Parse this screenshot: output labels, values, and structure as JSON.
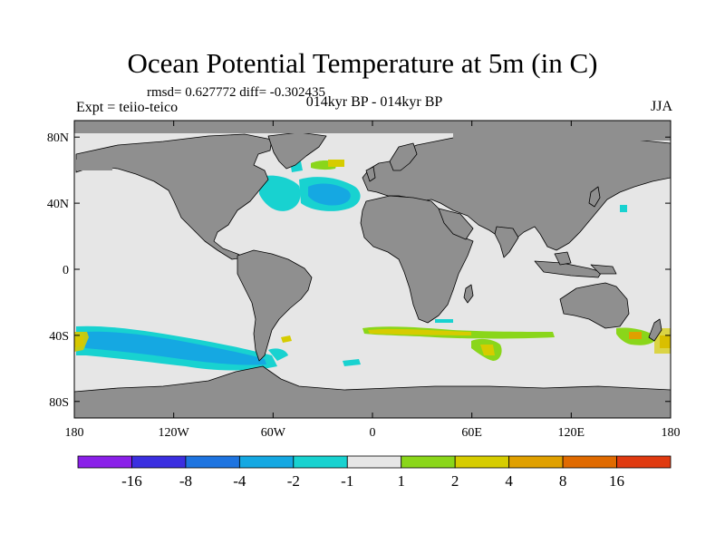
{
  "chart_data": {
    "type": "heatmap",
    "title": "Ocean Potential Temperature at 5m (in C)",
    "stats_text": "rmsd= 0.627772 diff= -0.302435",
    "left_subtitle": "Expt = teiio-teico",
    "center_subtitle": "014kyr BP - 014kyr BP",
    "right_subtitle": "JJA",
    "x_ticks": [
      "180",
      "120W",
      "60W",
      "0",
      "60E",
      "120E",
      "180"
    ],
    "y_ticks": [
      "80N",
      "40N",
      "0",
      "40S",
      "80S"
    ],
    "xlim": [
      -180,
      180
    ],
    "ylim": [
      -90,
      90
    ],
    "colorbar": {
      "labels": [
        "-16",
        "-8",
        "-4",
        "-2",
        "-1",
        "1",
        "2",
        "4",
        "8",
        "16"
      ],
      "colors": [
        "#8a20e8",
        "#3b2fe0",
        "#1e74e0",
        "#15a8e2",
        "#18d2d0",
        "#e6e6e6",
        "#8ad61a",
        "#d6cc00",
        "#e0a000",
        "#e06a00",
        "#e03a10"
      ]
    },
    "anomaly_regions": [
      {
        "name": "north-atlantic-cooling",
        "lon": -40,
        "lat": 42,
        "value": -2
      },
      {
        "name": "labrador-cooling",
        "lon": -55,
        "lat": 55,
        "value": -1.5
      },
      {
        "name": "nordic-warming",
        "lon": -10,
        "lat": 68,
        "value": 2
      },
      {
        "name": "southern-ocean-pacific-cooling",
        "lon": -130,
        "lat": -52,
        "value": -1.5
      },
      {
        "name": "southern-ocean-atlantic-warming",
        "lon": 50,
        "lat": -42,
        "value": 2
      },
      {
        "name": "tasman-warming",
        "lon": 165,
        "lat": -43,
        "value": 3
      },
      {
        "name": "south-pacific-warming",
        "lon": -175,
        "lat": -44,
        "value": 4
      },
      {
        "name": "kuroshio-cooling",
        "lon": 145,
        "lat": 38,
        "value": -1.5
      }
    ],
    "colors": {
      "land": "#8f8f8f",
      "ocean_neutral": "#e6e6e6",
      "coast": "#000000"
    }
  }
}
